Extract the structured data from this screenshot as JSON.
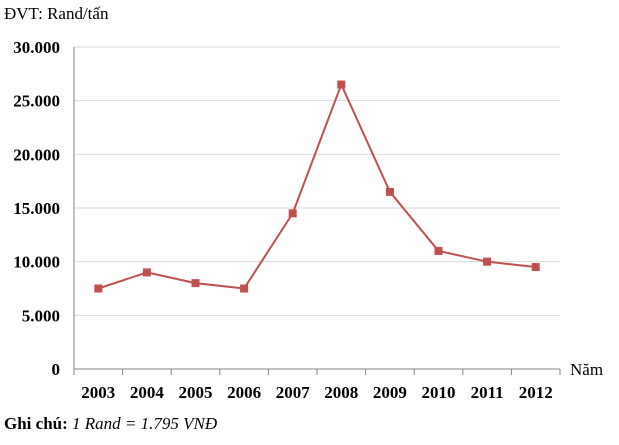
{
  "unit_label": "ĐVT: Rand/tấn",
  "note": {
    "label": "Ghi chú:",
    "text": "1 Rand = 1.795 VNĐ"
  },
  "colors": {
    "series": "#c0504d",
    "grid": "#d9d9d9",
    "axis": "#868686"
  },
  "chart_data": {
    "type": "line",
    "xlabel": "Năm",
    "ylabel": "",
    "categories": [
      "2003",
      "2004",
      "2005",
      "2006",
      "2007",
      "2008",
      "2009",
      "2010",
      "2011",
      "2012"
    ],
    "series": [
      {
        "values": [
          7500,
          9000,
          8000,
          7500,
          14500,
          26500,
          16500,
          11000,
          10000,
          9500
        ]
      }
    ],
    "ylim": [
      0,
      30000
    ],
    "yticks": [
      0,
      5000,
      10000,
      15000,
      20000,
      25000,
      30000
    ],
    "ytick_labels": [
      "0",
      "5.000",
      "10.000",
      "15.000",
      "20.000",
      "25.000",
      "30.000"
    ],
    "grid": true,
    "legend": false,
    "marker": "square"
  }
}
